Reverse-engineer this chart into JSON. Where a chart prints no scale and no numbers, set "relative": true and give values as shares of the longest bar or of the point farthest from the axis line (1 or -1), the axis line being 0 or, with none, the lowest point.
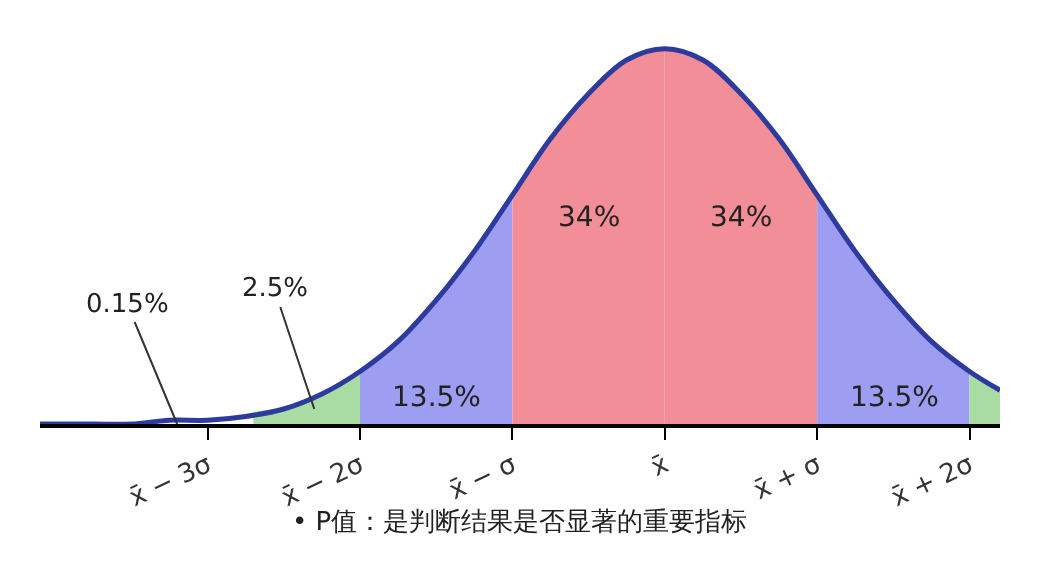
{
  "chart_data": {
    "type": "area",
    "relative": true,
    "marker": "none",
    "xlim": [
      -4.1,
      2.2
    ],
    "xticks": [
      {
        "value": -3,
        "label": "x̄ − 3σ"
      },
      {
        "value": -2,
        "label": "x̄ − 2σ"
      },
      {
        "value": -1,
        "label": "x̄ − σ"
      },
      {
        "value": 0,
        "label": "x̄"
      },
      {
        "value": 1,
        "label": "x̄ + σ"
      },
      {
        "value": 2,
        "label": "x̄ + 2σ"
      }
    ],
    "series": [
      {
        "color": "#a8dca2",
        "x": [
          -2.7,
          -2.5,
          -2.25,
          -2
        ],
        "values": [
          0.03,
          0.04,
          0.08,
          0.14
        ]
      },
      {
        "color": "#9d9df2",
        "x": [
          -2,
          -1.75,
          -1.5,
          -1.25,
          -1
        ],
        "values": [
          0.14,
          0.22,
          0.33,
          0.46,
          0.61
        ]
      },
      {
        "color": "#f28e97",
        "x": [
          -1,
          -0.75,
          -0.5,
          -0.25,
          0
        ],
        "values": [
          0.61,
          0.76,
          0.88,
          0.97,
          1
        ]
      },
      {
        "color": "#f28e97",
        "x": [
          0,
          0.25,
          0.5,
          0.75,
          1
        ],
        "values": [
          1,
          0.97,
          0.88,
          0.76,
          0.61
        ]
      },
      {
        "color": "#9d9df2",
        "x": [
          1,
          1.25,
          1.5,
          1.75,
          2
        ],
        "values": [
          0.61,
          0.46,
          0.33,
          0.22,
          0.14
        ]
      },
      {
        "color": "#a8dca2",
        "x": [
          2,
          2.2
        ],
        "values": [
          0.14,
          0.09
        ]
      },
      {
        "type": "line",
        "color": "#2d3a9e",
        "x": [
          -4.1,
          -3.75,
          -3.5,
          -3.25,
          -3,
          -2.75,
          -2.5,
          -2.25,
          -2,
          -1.75,
          -1.5,
          -1.25,
          -1,
          -0.75,
          -0.5,
          -0.25,
          0,
          0.25,
          0.5,
          0.75,
          1,
          1.25,
          1.5,
          1.75,
          2,
          2.2
        ],
        "values": [
          0,
          0,
          0,
          0.01,
          0.01,
          0.02,
          0.04,
          0.08,
          0.14,
          0.22,
          0.33,
          0.46,
          0.61,
          0.76,
          0.88,
          0.97,
          1,
          0.97,
          0.88,
          0.76,
          0.61,
          0.46,
          0.33,
          0.22,
          0.14,
          0.09
        ]
      }
    ],
    "annotations": [
      {
        "text": "0.15%",
        "x": -3.2,
        "y": 0.0
      },
      {
        "text": "2.5%",
        "x": -2.3,
        "y": 0.04
      },
      "13.5%",
      "34%",
      "34%",
      "13.5%",
      "• P值：是判断结果是否显著的重要指标"
    ]
  }
}
